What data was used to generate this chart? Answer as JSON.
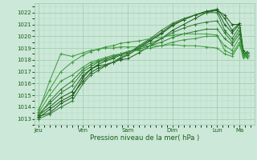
{
  "xlabel": "Pression niveau de la mer( hPa )",
  "ylim": [
    1012.5,
    1022.8
  ],
  "yticks": [
    1013,
    1014,
    1015,
    1016,
    1017,
    1018,
    1019,
    1020,
    1021,
    1022
  ],
  "day_labels": [
    "Jeu",
    "Ven",
    "Sam",
    "Dim",
    "Lun",
    "Ma"
  ],
  "day_positions": [
    0,
    24,
    48,
    72,
    96,
    108
  ],
  "xlim": [
    -2,
    116
  ],
  "bg_color": "#cce8d8",
  "grid_color_major": "#99ccaa",
  "grid_color_minor": "#aad4bb",
  "line_color_dark": "#1a5c1a",
  "line_color_mid": "#2d7a2d",
  "line_color_light": "#3d9a3d",
  "total_points": 113,
  "series": [
    {
      "color": "#1a5c1a",
      "pts": [
        [
          0,
          1013.2
        ],
        [
          6,
          1013.5
        ],
        [
          12,
          1014.3
        ],
        [
          18,
          1014.8
        ],
        [
          24,
          1016.5
        ],
        [
          28,
          1017.2
        ],
        [
          32,
          1017.5
        ],
        [
          36,
          1017.6
        ],
        [
          40,
          1017.8
        ],
        [
          44,
          1018.0
        ],
        [
          48,
          1018.1
        ],
        [
          54,
          1018.6
        ],
        [
          60,
          1019.2
        ],
        [
          66,
          1019.8
        ],
        [
          72,
          1020.5
        ],
        [
          78,
          1021.0
        ],
        [
          84,
          1021.5
        ],
        [
          90,
          1022.0
        ],
        [
          96,
          1022.2
        ],
        [
          100,
          1021.8
        ],
        [
          104,
          1021.0
        ],
        [
          108,
          1021.0
        ],
        [
          110,
          1018.5
        ],
        [
          112,
          1018.3
        ]
      ]
    },
    {
      "color": "#1a5c1a",
      "pts": [
        [
          0,
          1013.1
        ],
        [
          6,
          1013.8
        ],
        [
          12,
          1014.5
        ],
        [
          18,
          1015.0
        ],
        [
          24,
          1016.2
        ],
        [
          28,
          1016.9
        ],
        [
          32,
          1017.3
        ],
        [
          36,
          1017.5
        ],
        [
          40,
          1017.8
        ],
        [
          44,
          1018.1
        ],
        [
          48,
          1018.4
        ],
        [
          54,
          1019.0
        ],
        [
          60,
          1019.6
        ],
        [
          66,
          1020.2
        ],
        [
          72,
          1020.9
        ],
        [
          78,
          1021.4
        ],
        [
          84,
          1021.8
        ],
        [
          90,
          1022.1
        ],
        [
          96,
          1022.3
        ],
        [
          100,
          1021.5
        ],
        [
          104,
          1020.5
        ],
        [
          108,
          1021.1
        ],
        [
          110,
          1018.8
        ],
        [
          112,
          1018.5
        ]
      ]
    },
    {
      "color": "#1a5c1a",
      "pts": [
        [
          0,
          1013.3
        ],
        [
          6,
          1014.0
        ],
        [
          12,
          1014.8
        ],
        [
          18,
          1015.3
        ],
        [
          24,
          1016.7
        ],
        [
          28,
          1017.2
        ],
        [
          32,
          1017.6
        ],
        [
          36,
          1017.9
        ],
        [
          40,
          1018.1
        ],
        [
          44,
          1018.4
        ],
        [
          48,
          1018.6
        ],
        [
          54,
          1019.1
        ],
        [
          60,
          1019.7
        ],
        [
          66,
          1020.3
        ],
        [
          72,
          1021.0
        ],
        [
          78,
          1021.4
        ],
        [
          84,
          1021.8
        ],
        [
          90,
          1022.1
        ],
        [
          96,
          1022.2
        ],
        [
          100,
          1021.0
        ],
        [
          104,
          1020.3
        ],
        [
          108,
          1021.0
        ],
        [
          110,
          1018.6
        ],
        [
          112,
          1018.4
        ]
      ]
    },
    {
      "color": "#2d7a2d",
      "pts": [
        [
          0,
          1013.0
        ],
        [
          6,
          1013.4
        ],
        [
          12,
          1014.0
        ],
        [
          18,
          1014.5
        ],
        [
          24,
          1016.0
        ],
        [
          28,
          1016.7
        ],
        [
          32,
          1017.1
        ],
        [
          36,
          1017.5
        ],
        [
          40,
          1017.8
        ],
        [
          44,
          1018.2
        ],
        [
          48,
          1018.5
        ],
        [
          54,
          1019.2
        ],
        [
          60,
          1019.8
        ],
        [
          66,
          1020.5
        ],
        [
          72,
          1021.1
        ],
        [
          78,
          1021.5
        ],
        [
          84,
          1021.8
        ],
        [
          90,
          1022.0
        ],
        [
          96,
          1022.0
        ],
        [
          100,
          1020.5
        ],
        [
          104,
          1019.8
        ],
        [
          108,
          1020.8
        ],
        [
          110,
          1018.5
        ],
        [
          112,
          1018.2
        ]
      ]
    },
    {
      "color": "#2d7a2d",
      "pts": [
        [
          0,
          1013.4
        ],
        [
          6,
          1014.3
        ],
        [
          12,
          1015.2
        ],
        [
          18,
          1015.8
        ],
        [
          24,
          1017.0
        ],
        [
          28,
          1017.4
        ],
        [
          32,
          1017.8
        ],
        [
          36,
          1018.0
        ],
        [
          40,
          1018.2
        ],
        [
          44,
          1018.5
        ],
        [
          48,
          1018.7
        ],
        [
          54,
          1019.0
        ],
        [
          60,
          1019.4
        ],
        [
          66,
          1019.8
        ],
        [
          72,
          1020.3
        ],
        [
          78,
          1020.7
        ],
        [
          84,
          1021.0
        ],
        [
          90,
          1021.2
        ],
        [
          96,
          1021.3
        ],
        [
          100,
          1020.3
        ],
        [
          104,
          1019.5
        ],
        [
          108,
          1020.5
        ],
        [
          110,
          1018.4
        ],
        [
          112,
          1018.6
        ]
      ]
    },
    {
      "color": "#2d7a2d",
      "pts": [
        [
          0,
          1013.2
        ],
        [
          6,
          1014.5
        ],
        [
          12,
          1015.5
        ],
        [
          18,
          1016.2
        ],
        [
          24,
          1017.2
        ],
        [
          28,
          1017.6
        ],
        [
          32,
          1017.9
        ],
        [
          36,
          1018.1
        ],
        [
          40,
          1018.3
        ],
        [
          44,
          1018.5
        ],
        [
          48,
          1018.7
        ],
        [
          54,
          1018.9
        ],
        [
          60,
          1019.2
        ],
        [
          66,
          1019.5
        ],
        [
          72,
          1019.9
        ],
        [
          78,
          1020.2
        ],
        [
          84,
          1020.4
        ],
        [
          90,
          1020.6
        ],
        [
          96,
          1020.6
        ],
        [
          100,
          1019.8
        ],
        [
          104,
          1019.3
        ],
        [
          108,
          1020.2
        ],
        [
          110,
          1018.5
        ],
        [
          112,
          1018.7
        ]
      ]
    },
    {
      "color": "#3d9a3d",
      "pts": [
        [
          0,
          1013.5
        ],
        [
          6,
          1015.0
        ],
        [
          12,
          1016.2
        ],
        [
          18,
          1016.7
        ],
        [
          24,
          1017.4
        ],
        [
          28,
          1017.8
        ],
        [
          32,
          1018.0
        ],
        [
          36,
          1018.2
        ],
        [
          40,
          1018.4
        ],
        [
          44,
          1018.5
        ],
        [
          48,
          1018.7
        ],
        [
          54,
          1018.8
        ],
        [
          60,
          1019.0
        ],
        [
          66,
          1019.2
        ],
        [
          72,
          1019.5
        ],
        [
          78,
          1019.7
        ],
        [
          84,
          1019.8
        ],
        [
          90,
          1020.0
        ],
        [
          96,
          1020.0
        ],
        [
          100,
          1019.2
        ],
        [
          104,
          1018.8
        ],
        [
          108,
          1019.9
        ],
        [
          110,
          1018.4
        ],
        [
          112,
          1018.5
        ]
      ]
    },
    {
      "color": "#3d9a3d",
      "pts": [
        [
          0,
          1013.8
        ],
        [
          6,
          1015.5
        ],
        [
          12,
          1017.0
        ],
        [
          18,
          1017.8
        ],
        [
          24,
          1018.4
        ],
        [
          28,
          1018.7
        ],
        [
          32,
          1018.9
        ],
        [
          36,
          1019.1
        ],
        [
          40,
          1019.2
        ],
        [
          44,
          1019.4
        ],
        [
          48,
          1019.5
        ],
        [
          54,
          1019.6
        ],
        [
          60,
          1019.8
        ],
        [
          66,
          1019.9
        ],
        [
          72,
          1020.1
        ],
        [
          78,
          1020.2
        ],
        [
          84,
          1020.2
        ],
        [
          90,
          1020.2
        ],
        [
          96,
          1020.1
        ],
        [
          100,
          1018.8
        ],
        [
          104,
          1018.5
        ],
        [
          108,
          1019.5
        ],
        [
          110,
          1018.3
        ],
        [
          112,
          1018.4
        ]
      ]
    },
    {
      "color": "#3d9a3d",
      "pts": [
        [
          0,
          1013.6
        ],
        [
          6,
          1016.2
        ],
        [
          12,
          1018.5
        ],
        [
          18,
          1018.3
        ],
        [
          24,
          1018.6
        ],
        [
          28,
          1018.8
        ],
        [
          32,
          1018.9
        ],
        [
          36,
          1019.0
        ],
        [
          40,
          1019.0
        ],
        [
          44,
          1019.1
        ],
        [
          48,
          1019.1
        ],
        [
          54,
          1019.1
        ],
        [
          60,
          1019.2
        ],
        [
          66,
          1019.2
        ],
        [
          72,
          1019.3
        ],
        [
          78,
          1019.2
        ],
        [
          84,
          1019.2
        ],
        [
          90,
          1019.1
        ],
        [
          96,
          1019.0
        ],
        [
          100,
          1018.5
        ],
        [
          104,
          1018.3
        ],
        [
          108,
          1019.3
        ],
        [
          110,
          1018.2
        ],
        [
          112,
          1018.3
        ]
      ]
    }
  ]
}
